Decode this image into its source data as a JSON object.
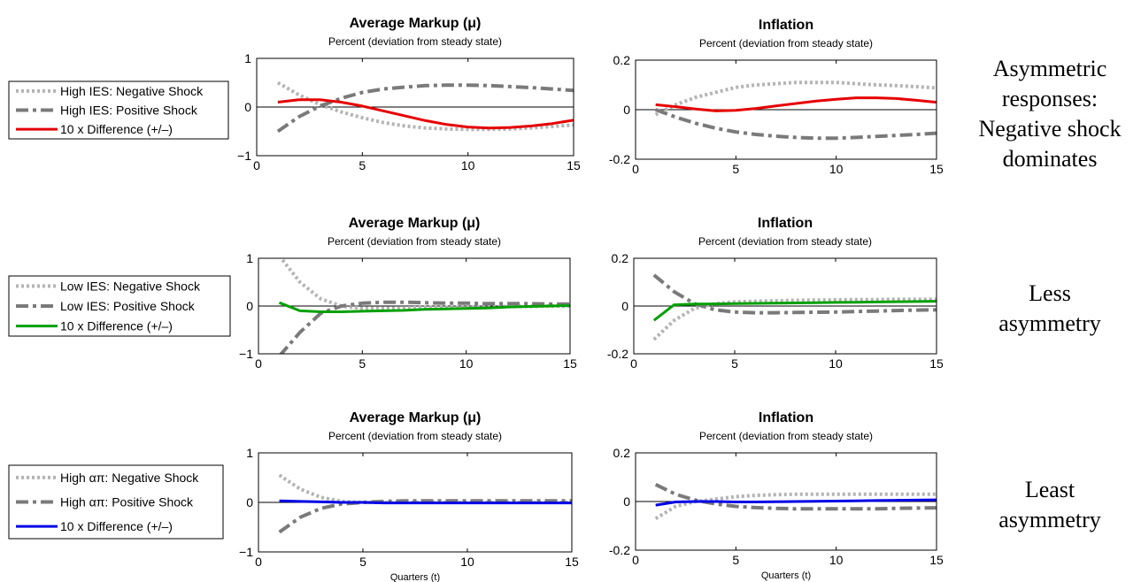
{
  "rows": [
    {
      "legend": [
        {
          "label": "High IES: Negative Shock",
          "color": "#b4b4b4",
          "style": "dotted"
        },
        {
          "label": "High IES: Positive Shock",
          "color": "#7a7a7a",
          "style": "dashdot"
        },
        {
          "label": "10 x Difference (+/–)",
          "color": "#e60000",
          "style": "solid"
        }
      ],
      "annotation": [
        "Asymmetric",
        "responses:",
        "Negative shock",
        "dominates"
      ]
    },
    {
      "legend": [
        {
          "label": "Low IES: Negative Shock",
          "color": "#b4b4b4",
          "style": "dotted"
        },
        {
          "label": "Low IES: Positive Shock",
          "color": "#7a7a7a",
          "style": "dashdot"
        },
        {
          "label": "10 x Difference (+/–)",
          "color": "#00a000",
          "style": "solid"
        }
      ],
      "annotation": [
        "Less",
        "asymmetry"
      ]
    },
    {
      "legend": [
        {
          "label": "High απ: Negative Shock",
          "color": "#b4b4b4",
          "style": "dotted"
        },
        {
          "label": "High απ: Positive Shock",
          "color": "#7a7a7a",
          "style": "dashdot"
        },
        {
          "label": "10 x Difference (+/–)",
          "color": "#0000e6",
          "style": "solid"
        }
      ],
      "annotation": [
        "Least",
        "asymmetry"
      ]
    }
  ],
  "chart_data": [
    {
      "type": "line",
      "title": "Average Markup (μ)",
      "subtitle": "Percent (deviation from steady state)",
      "xlabel": "",
      "xlim": [
        0,
        15
      ],
      "ylim": [
        -1,
        1
      ],
      "xticks": [
        0,
        5,
        10,
        15
      ],
      "yticks": [
        -1,
        0,
        1
      ],
      "ytick_labels": [
        "−1",
        "0",
        "1"
      ],
      "x": [
        1,
        2,
        3,
        4,
        5,
        6,
        7,
        8,
        9,
        10,
        11,
        12,
        13,
        14,
        15
      ],
      "series": [
        {
          "name": "High IES: Negative Shock",
          "color": "#b4b4b4",
          "style": "dotted",
          "values": [
            0.5,
            0.25,
            0.05,
            -0.1,
            -0.22,
            -0.32,
            -0.39,
            -0.43,
            -0.45,
            -0.46,
            -0.46,
            -0.45,
            -0.43,
            -0.4,
            -0.37
          ]
        },
        {
          "name": "High IES: Positive Shock",
          "color": "#7a7a7a",
          "style": "dashdot",
          "values": [
            -0.5,
            -0.2,
            0.02,
            0.18,
            0.3,
            0.37,
            0.41,
            0.44,
            0.45,
            0.45,
            0.44,
            0.42,
            0.4,
            0.37,
            0.34
          ]
        },
        {
          "name": "10 x Difference (+/–)",
          "color": "#e60000",
          "style": "solid",
          "values": [
            0.1,
            0.15,
            0.15,
            0.1,
            0.02,
            -0.08,
            -0.18,
            -0.28,
            -0.36,
            -0.41,
            -0.43,
            -0.42,
            -0.39,
            -0.34,
            -0.27
          ]
        }
      ]
    },
    {
      "type": "line",
      "title": "Inflation",
      "subtitle": "Percent (deviation from steady state)",
      "xlabel": "",
      "xlim": [
        0,
        15
      ],
      "ylim": [
        -0.2,
        0.2
      ],
      "xticks": [
        0,
        5,
        10,
        15
      ],
      "yticks": [
        -0.2,
        0,
        0.2
      ],
      "ytick_labels": [
        "-0.2",
        "0",
        "0.2"
      ],
      "x": [
        1,
        2,
        3,
        4,
        5,
        6,
        7,
        8,
        9,
        10,
        11,
        12,
        13,
        14,
        15
      ],
      "series": [
        {
          "name": "High IES: Negative Shock",
          "color": "#b4b4b4",
          "style": "dotted",
          "values": [
            -0.02,
            0.02,
            0.05,
            0.07,
            0.09,
            0.1,
            0.105,
            0.11,
            0.11,
            0.11,
            0.105,
            0.1,
            0.097,
            0.093,
            0.088
          ]
        },
        {
          "name": "High IES: Positive Shock",
          "color": "#7a7a7a",
          "style": "dashdot",
          "values": [
            0.0,
            -0.03,
            -0.055,
            -0.075,
            -0.09,
            -0.1,
            -0.107,
            -0.112,
            -0.115,
            -0.115,
            -0.112,
            -0.108,
            -0.104,
            -0.1,
            -0.095
          ]
        },
        {
          "name": "10 x Difference (+/–)",
          "color": "#e60000",
          "style": "solid",
          "values": [
            0.02,
            0.012,
            0.003,
            -0.005,
            -0.003,
            0.005,
            0.015,
            0.025,
            0.035,
            0.042,
            0.048,
            0.048,
            0.045,
            0.038,
            0.03
          ]
        }
      ]
    },
    {
      "type": "line",
      "title": "Average Markup (μ)",
      "subtitle": "Percent (deviation from steady state)",
      "xlabel": "",
      "xlim": [
        0,
        15
      ],
      "ylim": [
        -1,
        1
      ],
      "xticks": [
        0,
        5,
        10,
        15
      ],
      "yticks": [
        -1,
        0,
        1
      ],
      "ytick_labels": [
        "−1",
        "0",
        "1"
      ],
      "x": [
        1,
        2,
        3,
        4,
        5,
        6,
        7,
        8,
        9,
        10,
        11,
        12,
        13,
        14,
        15
      ],
      "series": [
        {
          "name": "Low IES: Negative Shock",
          "color": "#b4b4b4",
          "style": "dotted",
          "values": [
            1.05,
            0.5,
            0.15,
            0.0,
            -0.05,
            -0.05,
            -0.04,
            -0.03,
            -0.03,
            -0.02,
            -0.02,
            -0.01,
            -0.01,
            0.0,
            0.0
          ]
        },
        {
          "name": "Low IES: Positive Shock",
          "color": "#7a7a7a",
          "style": "dashdot",
          "values": [
            -1.05,
            -0.55,
            -0.15,
            0.0,
            0.06,
            0.08,
            0.08,
            0.07,
            0.06,
            0.06,
            0.05,
            0.05,
            0.05,
            0.04,
            0.04
          ]
        },
        {
          "name": "10 x Difference (+/–)",
          "color": "#00a000",
          "style": "solid",
          "values": [
            0.07,
            -0.1,
            -0.12,
            -0.12,
            -0.11,
            -0.1,
            -0.09,
            -0.07,
            -0.06,
            -0.05,
            -0.04,
            -0.02,
            -0.01,
            0.0,
            0.01
          ]
        }
      ]
    },
    {
      "type": "line",
      "title": "Inflation",
      "subtitle": "Percent (deviation from steady state)",
      "xlabel": "",
      "xlim": [
        0,
        15
      ],
      "ylim": [
        -0.2,
        0.2
      ],
      "xticks": [
        0,
        5,
        10,
        15
      ],
      "yticks": [
        -0.2,
        0,
        0.2
      ],
      "ytick_labels": [
        "-0.2",
        "0",
        "0.2"
      ],
      "x": [
        1,
        2,
        3,
        4,
        5,
        6,
        7,
        8,
        9,
        10,
        11,
        12,
        13,
        14,
        15
      ],
      "series": [
        {
          "name": "Low IES: Negative Shock",
          "color": "#b4b4b4",
          "style": "dotted",
          "values": [
            -0.14,
            -0.06,
            -0.01,
            0.01,
            0.017,
            0.02,
            0.022,
            0.024,
            0.025,
            0.026,
            0.027,
            0.027,
            0.028,
            0.028,
            0.028
          ]
        },
        {
          "name": "Low IES: Positive Shock",
          "color": "#7a7a7a",
          "style": "dashdot",
          "values": [
            0.13,
            0.06,
            0.01,
            -0.015,
            -0.025,
            -0.028,
            -0.028,
            -0.027,
            -0.026,
            -0.025,
            -0.023,
            -0.021,
            -0.019,
            -0.017,
            -0.016
          ]
        },
        {
          "name": "10 x Difference (+/–)",
          "color": "#00a000",
          "style": "solid",
          "values": [
            -0.06,
            0.005,
            0.008,
            0.009,
            0.01,
            0.011,
            0.012,
            0.013,
            0.014,
            0.015,
            0.016,
            0.017,
            0.018,
            0.019,
            0.02
          ]
        }
      ]
    },
    {
      "type": "line",
      "title": "Average Markup (μ)",
      "subtitle": "Percent (deviation from steady state)",
      "xlabel": "Quarters (t)",
      "xlim": [
        0,
        15
      ],
      "ylim": [
        -1,
        1
      ],
      "xticks": [
        0,
        5,
        10,
        15
      ],
      "yticks": [
        -1,
        0,
        1
      ],
      "ytick_labels": [
        "−1",
        "0",
        "1"
      ],
      "x": [
        1,
        2,
        3,
        4,
        5,
        6,
        7,
        8,
        9,
        10,
        11,
        12,
        13,
        14,
        15
      ],
      "series": [
        {
          "name": "High απ: Negative Shock",
          "color": "#b4b4b4",
          "style": "dotted",
          "values": [
            0.55,
            0.27,
            0.1,
            0.02,
            0.0,
            0.0,
            0.0,
            0.0,
            0.0,
            0.0,
            0.0,
            0.0,
            0.0,
            0.0,
            0.0
          ]
        },
        {
          "name": "High απ: Positive Shock",
          "color": "#7a7a7a",
          "style": "dashdot",
          "values": [
            -0.6,
            -0.3,
            -0.12,
            -0.03,
            0.0,
            0.02,
            0.03,
            0.03,
            0.03,
            0.03,
            0.03,
            0.03,
            0.03,
            0.03,
            0.03
          ]
        },
        {
          "name": "10 x Difference (+/–)",
          "color": "#0000e6",
          "style": "solid",
          "values": [
            0.03,
            0.02,
            0.01,
            0.0,
            0.0,
            -0.01,
            -0.01,
            -0.01,
            -0.01,
            -0.01,
            -0.01,
            -0.01,
            -0.01,
            -0.01,
            -0.01
          ]
        }
      ]
    },
    {
      "type": "line",
      "title": "Inflation",
      "subtitle": "Percent (deviation from steady state)",
      "xlabel": "Quarters (t)",
      "xlim": [
        0,
        15
      ],
      "ylim": [
        -0.2,
        0.2
      ],
      "xticks": [
        0,
        5,
        10,
        15
      ],
      "yticks": [
        -0.2,
        0,
        0.2
      ],
      "ytick_labels": [
        "-0.2",
        "0",
        "0.2"
      ],
      "x": [
        1,
        2,
        3,
        4,
        5,
        6,
        7,
        8,
        9,
        10,
        11,
        12,
        13,
        14,
        15
      ],
      "series": [
        {
          "name": "High απ: Negative Shock",
          "color": "#b4b4b4",
          "style": "dotted",
          "values": [
            -0.07,
            -0.02,
            0.0,
            0.01,
            0.02,
            0.025,
            0.028,
            0.03,
            0.03,
            0.03,
            0.03,
            0.03,
            0.03,
            0.03,
            0.03
          ]
        },
        {
          "name": "High απ: Positive Shock",
          "color": "#7a7a7a",
          "style": "dashdot",
          "values": [
            0.07,
            0.03,
            0.005,
            -0.01,
            -0.02,
            -0.025,
            -0.028,
            -0.03,
            -0.03,
            -0.03,
            -0.03,
            -0.03,
            -0.028,
            -0.027,
            -0.026
          ]
        },
        {
          "name": "10 x Difference (+/–)",
          "color": "#0000e6",
          "style": "solid",
          "values": [
            -0.015,
            -0.002,
            0.0,
            0.0,
            -0.002,
            -0.002,
            -0.001,
            0.0,
            0.001,
            0.002,
            0.003,
            0.004,
            0.005,
            0.006,
            0.007
          ]
        }
      ]
    }
  ]
}
